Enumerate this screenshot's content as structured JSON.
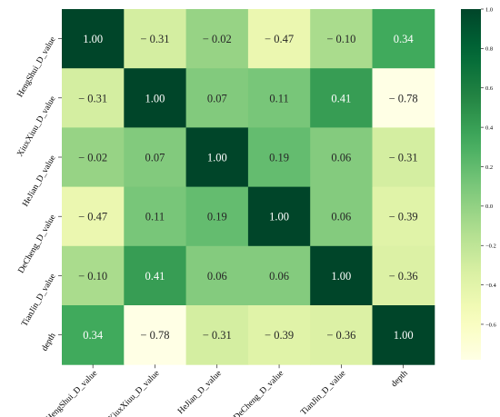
{
  "chart_data": {
    "type": "heatmap",
    "colormap": "YlGn",
    "title": "",
    "xlabel": "",
    "ylabel": "",
    "row_labels": [
      "HengShui_D_value",
      "XiuxXiuu_D_value",
      "HeJian_D_value",
      "DeCheng_D_value",
      "TianJin_D_value",
      "depth"
    ],
    "col_labels": [
      "HengShui_D_value",
      "XiuxXiuu_D_value",
      "HeJian_D_value",
      "DeCheng_D_value",
      "TianJin_D_value",
      "depth"
    ],
    "values": [
      [
        1.0,
        -0.31,
        -0.02,
        -0.47,
        -0.1,
        0.34
      ],
      [
        -0.31,
        1.0,
        0.07,
        0.11,
        0.41,
        -0.78
      ],
      [
        -0.02,
        0.07,
        1.0,
        0.19,
        0.06,
        -0.31
      ],
      [
        -0.47,
        0.11,
        0.19,
        1.0,
        0.06,
        -0.39
      ],
      [
        -0.1,
        0.41,
        0.06,
        0.06,
        1.0,
        -0.36
      ],
      [
        0.34,
        -0.78,
        -0.31,
        -0.39,
        -0.36,
        1.0
      ]
    ],
    "cell_labels": [
      [
        "1.00",
        "− 0.31",
        "− 0.02",
        "− 0.47",
        "− 0.10",
        "0.34"
      ],
      [
        "− 0.31",
        "1.00",
        "0.07",
        "0.11",
        "0.41",
        "− 0.78"
      ],
      [
        "− 0.02",
        "0.07",
        "1.00",
        "0.19",
        "0.06",
        "− 0.31"
      ],
      [
        "− 0.47",
        "0.11",
        "0.19",
        "1.00",
        "0.06",
        "− 0.39"
      ],
      [
        "− 0.10",
        "0.41",
        "0.06",
        "0.06",
        "1.00",
        "− 0.36"
      ],
      [
        "0.34",
        "− 0.78",
        "− 0.31",
        "− 0.39",
        "− 0.36",
        "1.00"
      ]
    ],
    "colorbar": {
      "min": -0.78,
      "max": 1.0,
      "ticks": [
        1.0,
        0.8,
        0.6,
        0.4,
        0.2,
        0.0,
        -0.2,
        -0.4,
        -0.6
      ],
      "tick_labels": [
        "1.0",
        "0.8",
        "0.6",
        "0.4",
        "0.2",
        "0.0",
        "−0.2",
        "−0.4",
        "−0.6"
      ]
    },
    "legend": "colorbar-right",
    "grid": false
  }
}
